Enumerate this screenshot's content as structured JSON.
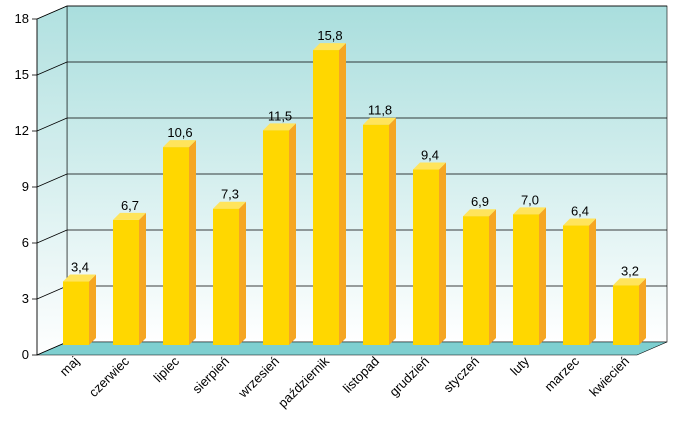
{
  "chart_data": {
    "type": "bar",
    "title": "",
    "xlabel": "",
    "ylabel": "",
    "categories": [
      "maj",
      "czerwiec",
      "lipiec",
      "sierpień",
      "wrzesień",
      "październik",
      "listopad",
      "grudzień",
      "styczeń",
      "luty",
      "marzec",
      "kwiecień"
    ],
    "values": [
      3.4,
      6.7,
      10.6,
      7.3,
      11.5,
      15.8,
      11.8,
      9.4,
      6.9,
      7.0,
      6.4,
      3.2
    ],
    "value_labels": [
      "3,4",
      "6,7",
      "10,6",
      "7,3",
      "11,5",
      "15,8",
      "11,8",
      "9,4",
      "6,9",
      "7,0",
      "6,4",
      "3,2"
    ],
    "ylim": [
      0,
      18
    ],
    "yticks": [
      0,
      3,
      6,
      9,
      12,
      15,
      18
    ],
    "grid": true,
    "legend": "none",
    "style": "3d-bar",
    "colors": {
      "bar_front": "#ffd700",
      "bar_side": "#f5a623",
      "bar_top": "#ffe45c",
      "wall_top": "#a9dedd",
      "wall_bottom": "#ffffff",
      "floor": "#7ecfd0",
      "gridline": "#000000"
    }
  }
}
